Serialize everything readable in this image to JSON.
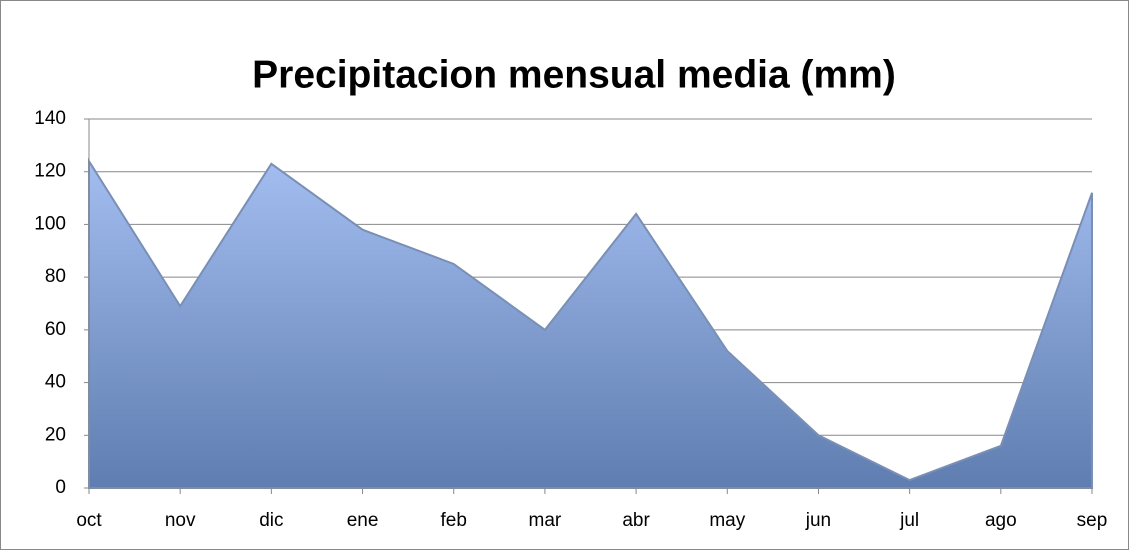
{
  "chart_data": {
    "type": "area",
    "title": "Precipitacion mensual media  (mm)",
    "categories": [
      "oct",
      "nov",
      "dic",
      "ene",
      "feb",
      "mar",
      "abr",
      "may",
      "jun",
      "jul",
      "ago",
      "sep"
    ],
    "values": [
      124,
      69,
      123,
      98,
      85,
      60,
      104,
      52,
      20,
      3,
      16,
      112
    ],
    "color": "#7f9bd0",
    "ylim": [
      0,
      140
    ],
    "yticks": [
      0,
      20,
      40,
      60,
      80,
      100,
      120,
      140
    ],
    "grid": true
  }
}
